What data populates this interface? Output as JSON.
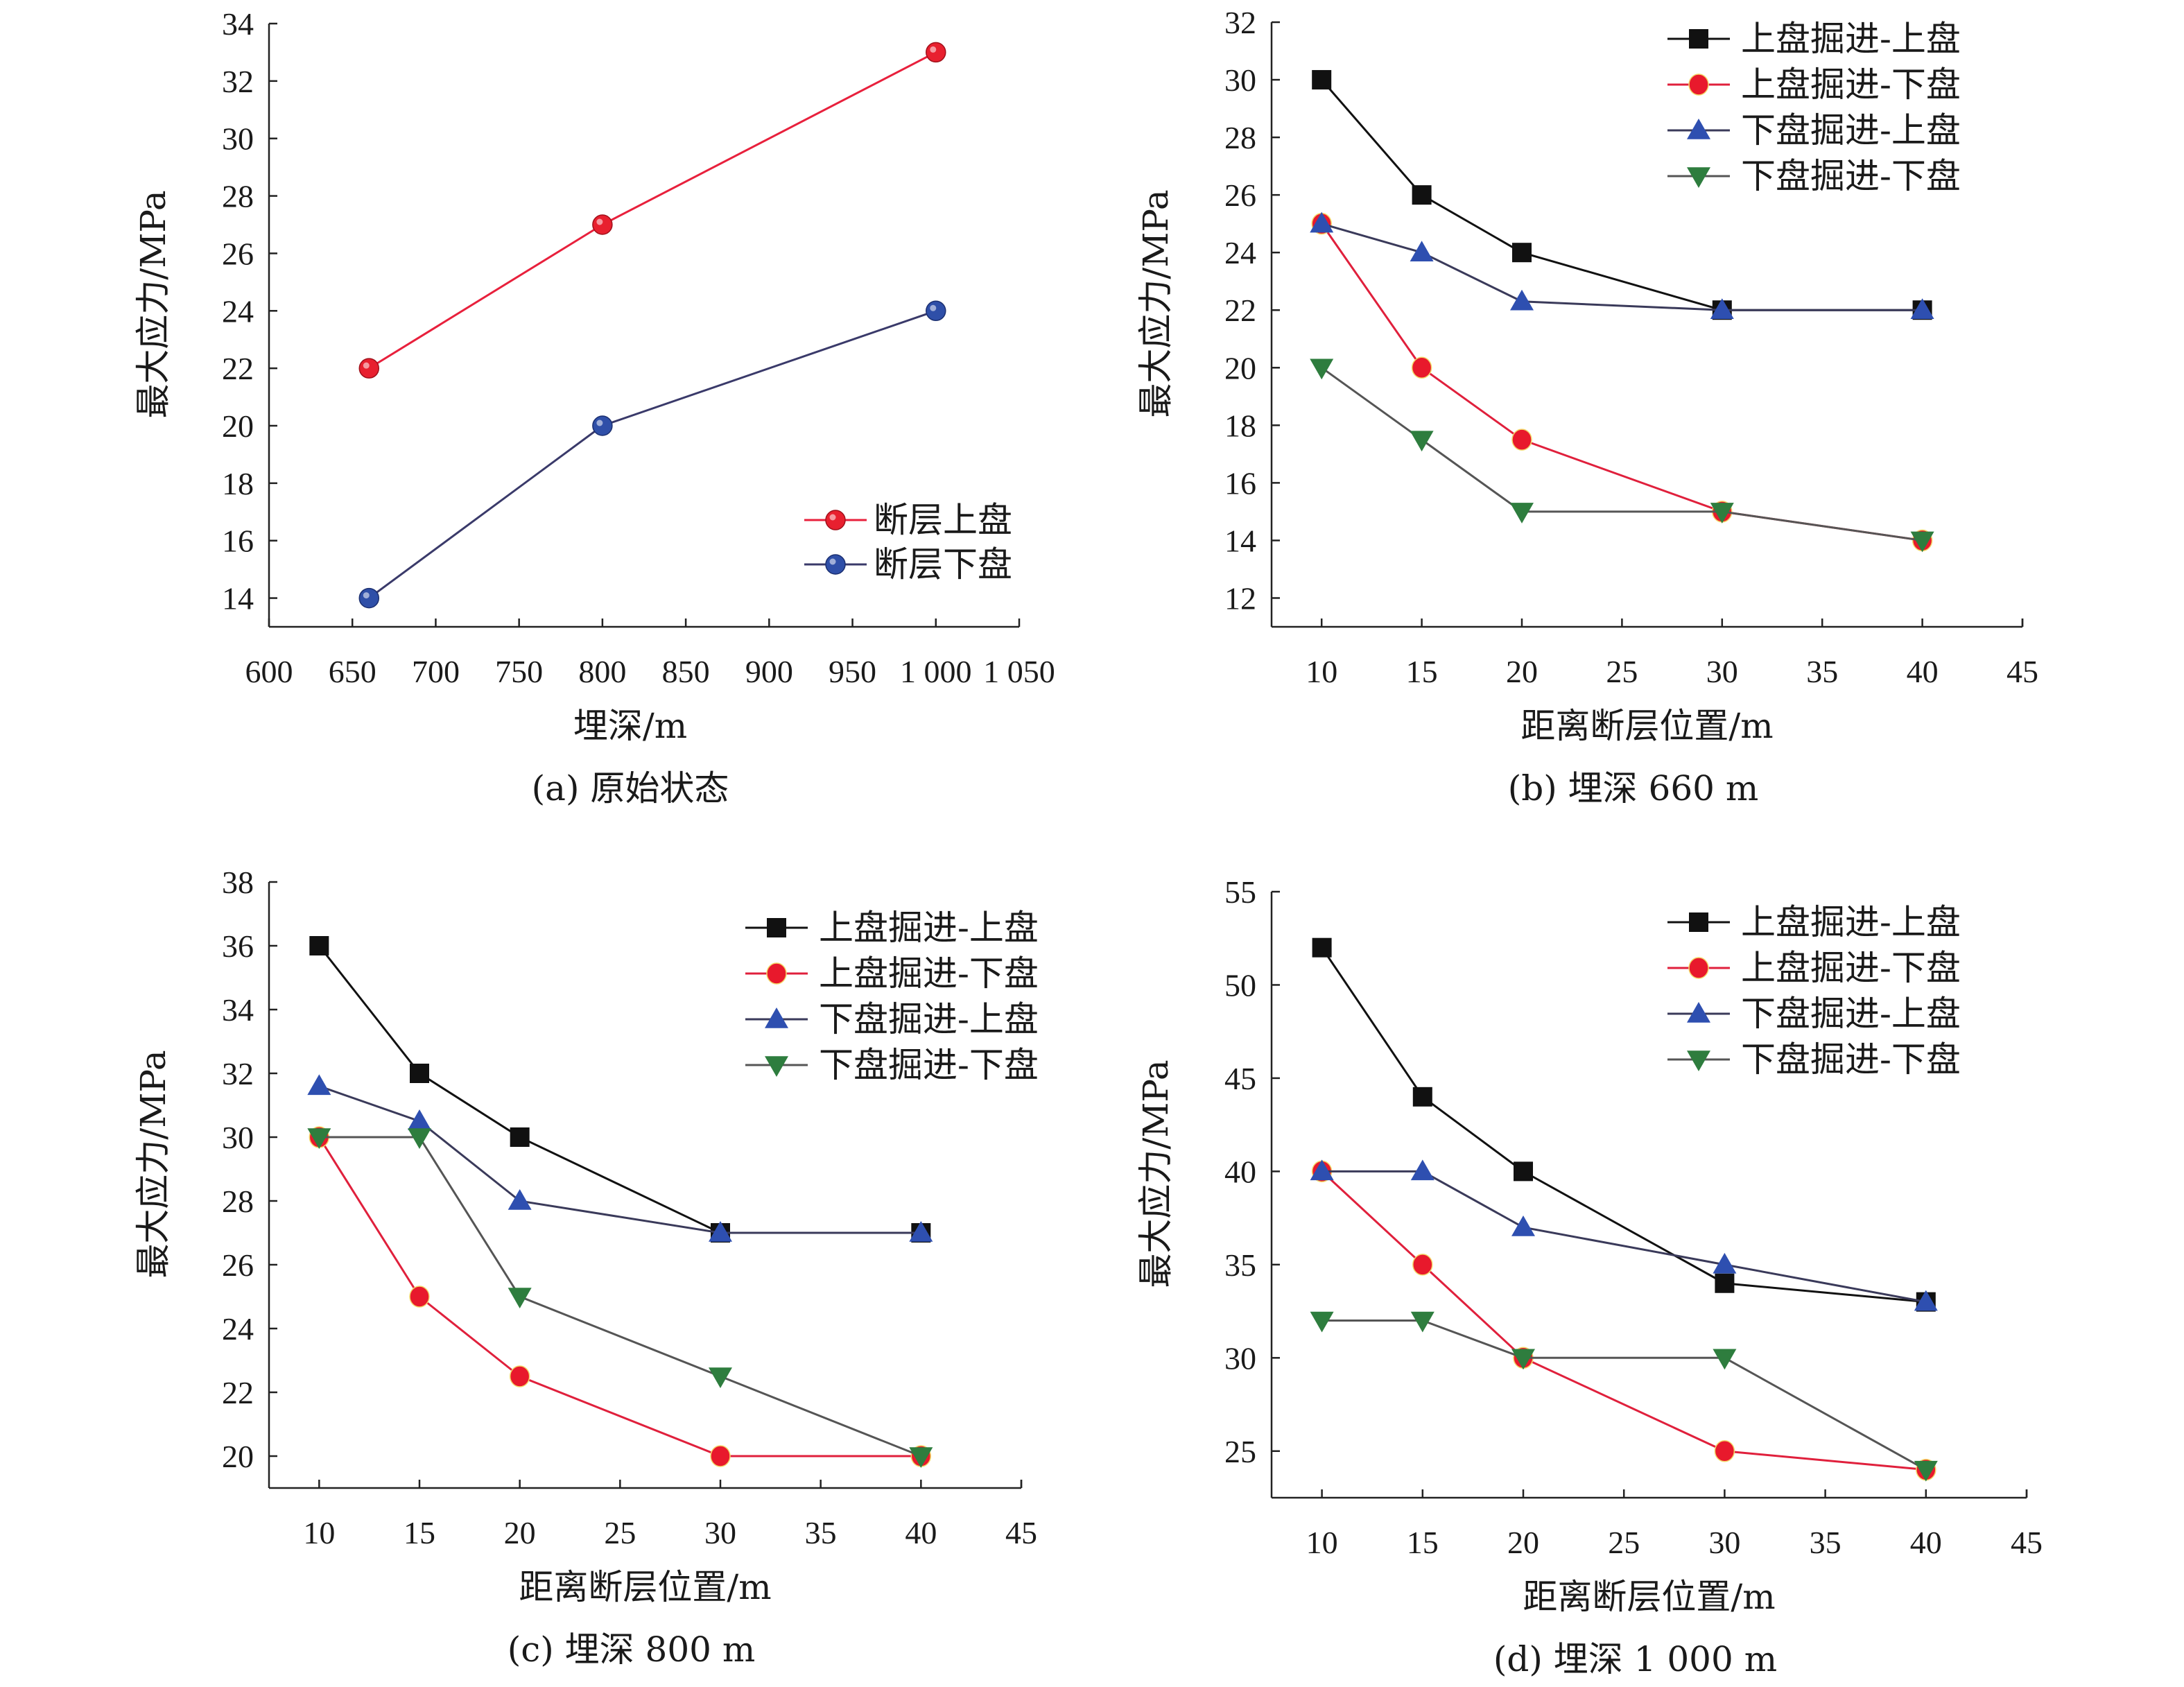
{
  "chart_data": [
    {
      "id": "a",
      "type": "line",
      "caption": "(a) 原始状态",
      "xlabel": "埋深/m",
      "ylabel": "最大应力/MPa",
      "xlim": [
        600,
        1050
      ],
      "ylim": [
        13,
        34
      ],
      "xticks": [
        600,
        650,
        700,
        750,
        800,
        850,
        900,
        950,
        1000,
        1050
      ],
      "xtick_labels": [
        "600",
        "650",
        "700",
        "750",
        "800",
        "850",
        "900",
        "950",
        "1 000",
        "1 050"
      ],
      "yticks": [
        14,
        16,
        18,
        20,
        22,
        24,
        26,
        28,
        30,
        32,
        34
      ],
      "ytick_labels": [
        "14",
        "16",
        "18",
        "20",
        "22",
        "24",
        "26",
        "28",
        "30",
        "32",
        "34"
      ],
      "grid": false,
      "legend_position": "bottom-right",
      "x": [
        660,
        800,
        1000
      ],
      "series": [
        {
          "name": "断层上盘",
          "values": [
            22,
            27,
            33
          ],
          "marker": "sphere",
          "color": "#e8202f",
          "line_color": "#e8203c"
        },
        {
          "name": "断层下盘",
          "values": [
            14,
            20,
            24
          ],
          "marker": "sphere",
          "color": "#2f4fa8",
          "line_color": "#3a3a6a"
        }
      ]
    },
    {
      "id": "b",
      "type": "line",
      "caption": "(b) 埋深 660 m",
      "xlabel": "距离断层位置/m",
      "ylabel": "最大应力/MPa",
      "xlim": [
        7.5,
        45
      ],
      "ylim": [
        11,
        32
      ],
      "xticks": [
        10,
        15,
        20,
        25,
        30,
        35,
        40,
        45
      ],
      "xtick_labels": [
        "10",
        "15",
        "20",
        "25",
        "30",
        "35",
        "40",
        "45"
      ],
      "yticks": [
        12,
        14,
        16,
        18,
        20,
        22,
        24,
        26,
        28,
        30,
        32
      ],
      "ytick_labels": [
        "12",
        "14",
        "16",
        "18",
        "20",
        "22",
        "24",
        "26",
        "28",
        "30",
        "32"
      ],
      "grid": false,
      "legend_position": "top-right",
      "x": [
        10,
        15,
        20,
        30,
        40
      ],
      "series": [
        {
          "name": "上盘掘进-上盘",
          "values": [
            30,
            26,
            24,
            22,
            22
          ],
          "marker": "square",
          "color": "#111111",
          "line_color": "#111111"
        },
        {
          "name": "上盘掘进-下盘",
          "values": [
            25,
            20,
            17.5,
            15,
            14
          ],
          "marker": "circle",
          "color": "#e8192c",
          "line_color": "#e0203c"
        },
        {
          "name": "下盘掘进-上盘",
          "values": [
            25,
            24,
            22.3,
            22,
            22
          ],
          "marker": "triangle-up",
          "color": "#2e4fb0",
          "line_color": "#3a3a5a"
        },
        {
          "name": "下盘掘进-下盘",
          "values": [
            20,
            17.5,
            15,
            15,
            14
          ],
          "marker": "triangle-down",
          "color": "#2e7d3e",
          "line_color": "#555555"
        }
      ]
    },
    {
      "id": "c",
      "type": "line",
      "caption": "(c) 埋深 800 m",
      "xlabel": "距离断层位置/m",
      "ylabel": "最大应力/MPa",
      "xlim": [
        7.5,
        45
      ],
      "ylim": [
        19,
        38
      ],
      "xticks": [
        10,
        15,
        20,
        25,
        30,
        35,
        40,
        45
      ],
      "xtick_labels": [
        "10",
        "15",
        "20",
        "25",
        "30",
        "35",
        "40",
        "45"
      ],
      "yticks": [
        20,
        22,
        24,
        26,
        28,
        30,
        32,
        34,
        36,
        38
      ],
      "ytick_labels": [
        "20",
        "22",
        "24",
        "26",
        "28",
        "30",
        "32",
        "34",
        "36",
        "38"
      ],
      "grid": false,
      "legend_position": "top-right",
      "x": [
        10,
        15,
        20,
        30,
        40
      ],
      "series": [
        {
          "name": "上盘掘进-上盘",
          "values": [
            36,
            32,
            30,
            27,
            27
          ],
          "marker": "square",
          "color": "#111111",
          "line_color": "#111111"
        },
        {
          "name": "上盘掘进-下盘",
          "values": [
            30,
            25,
            22.5,
            20,
            20
          ],
          "marker": "circle",
          "color": "#e8192c",
          "line_color": "#e0203c"
        },
        {
          "name": "下盘掘进-上盘",
          "values": [
            31.6,
            30.5,
            28,
            27,
            27
          ],
          "marker": "triangle-up",
          "color": "#2e4fb0",
          "line_color": "#3a3a5a"
        },
        {
          "name": "下盘掘进-下盘",
          "values": [
            30,
            30,
            25,
            22.5,
            20
          ],
          "marker": "triangle-down",
          "color": "#2e7d3e",
          "line_color": "#555555"
        }
      ]
    },
    {
      "id": "d",
      "type": "line",
      "caption": "(d) 埋深 1 000 m",
      "xlabel": "距离断层位置/m",
      "ylabel": "最大应力/MPa",
      "xlim": [
        7.5,
        45
      ],
      "ylim": [
        22.5,
        55
      ],
      "xticks": [
        10,
        15,
        20,
        25,
        30,
        35,
        40,
        45
      ],
      "xtick_labels": [
        "10",
        "15",
        "20",
        "25",
        "30",
        "35",
        "40",
        "45"
      ],
      "yticks": [
        25,
        30,
        35,
        40,
        45,
        50,
        55
      ],
      "ytick_labels": [
        "25",
        "30",
        "35",
        "40",
        "45",
        "50",
        "55"
      ],
      "grid": false,
      "legend_position": "top-right",
      "x": [
        10,
        15,
        20,
        30,
        40
      ],
      "series": [
        {
          "name": "上盘掘进-上盘",
          "values": [
            52,
            44,
            40,
            34,
            33
          ],
          "marker": "square",
          "color": "#111111",
          "line_color": "#111111"
        },
        {
          "name": "上盘掘进-下盘",
          "values": [
            40,
            35,
            30,
            25,
            24
          ],
          "marker": "circle",
          "color": "#e8192c",
          "line_color": "#e0203c"
        },
        {
          "name": "下盘掘进-上盘",
          "values": [
            40,
            40,
            37,
            35,
            33
          ],
          "marker": "triangle-up",
          "color": "#2e4fb0",
          "line_color": "#3a3a5a"
        },
        {
          "name": "下盘掘进-下盘",
          "values": [
            32,
            32,
            30,
            30,
            24
          ],
          "marker": "triangle-down",
          "color": "#2e7d3e",
          "line_color": "#555555"
        }
      ]
    }
  ]
}
